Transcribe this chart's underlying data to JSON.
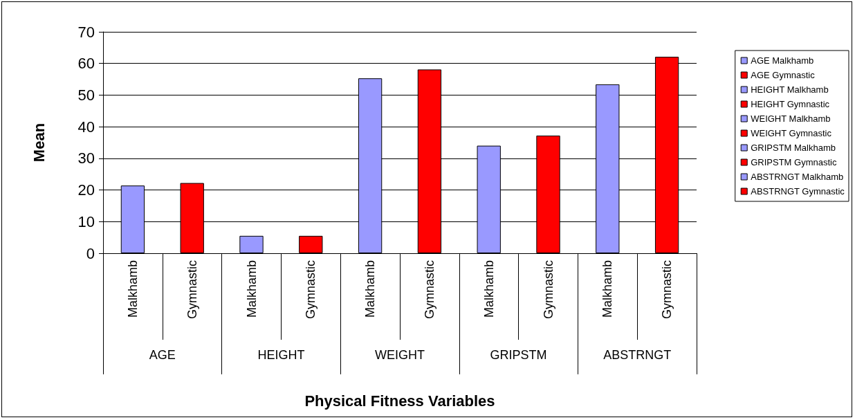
{
  "chart_data": {
    "type": "bar",
    "xlabel": "Physical Fitness Variables",
    "ylabel": "Mean",
    "categories": [
      "Malkhamb",
      "Gymnastic",
      "Malkhamb",
      "Gymnastic",
      "Malkhamb",
      "Gymnastic",
      "Malkhamb",
      "Gymnastic",
      "Malkhamb",
      "Gymnastic"
    ],
    "annotations": [
      "AGE",
      "HEIGHT",
      "WEIGHT",
      "GRIPSTM",
      "ABSTRNGT"
    ],
    "series": [
      {
        "name": "AGE Malkhamb",
        "color": "#9999ff",
        "values": [
          21.4,
          null,
          null,
          null,
          null,
          null,
          null,
          null,
          null,
          null
        ]
      },
      {
        "name": "AGE Gymnastic",
        "color": "#ff0000",
        "values": [
          null,
          22.2,
          null,
          null,
          null,
          null,
          null,
          null,
          null,
          null
        ]
      },
      {
        "name": "HEIGHT Malkhamb",
        "color": "#9999ff",
        "values": [
          null,
          null,
          5.5,
          null,
          null,
          null,
          null,
          null,
          null,
          null
        ]
      },
      {
        "name": "HEIGHT Gymnastic",
        "color": "#ff0000",
        "values": [
          null,
          null,
          null,
          5.5,
          null,
          null,
          null,
          null,
          null,
          null
        ]
      },
      {
        "name": "WEIGHT Malkhamb",
        "color": "#9999ff",
        "values": [
          null,
          null,
          null,
          null,
          55.3,
          null,
          null,
          null,
          null,
          null
        ]
      },
      {
        "name": "WEIGHT Gymnastic",
        "color": "#ff0000",
        "values": [
          null,
          null,
          null,
          null,
          null,
          58.1,
          null,
          null,
          null,
          null
        ]
      },
      {
        "name": "GRIPSTM Malkhamb",
        "color": "#9999ff",
        "values": [
          null,
          null,
          null,
          null,
          null,
          null,
          34,
          null,
          null,
          null
        ]
      },
      {
        "name": "GRIPSTM Gymnastic",
        "color": "#ff0000",
        "values": [
          null,
          null,
          null,
          null,
          null,
          null,
          null,
          37.2,
          null,
          null
        ]
      },
      {
        "name": "ABSTRNGT Malkhamb",
        "color": "#9999ff",
        "values": [
          null,
          null,
          null,
          null,
          null,
          null,
          null,
          null,
          53.4,
          null
        ]
      },
      {
        "name": "ABSTRNGT Gymnastic",
        "color": "#ff0000",
        "values": [
          null,
          null,
          null,
          null,
          null,
          null,
          null,
          null,
          null,
          62.1
        ]
      }
    ],
    "ylim": [
      0,
      70
    ],
    "yticks": [
      0,
      10,
      20,
      30,
      40,
      50,
      60,
      70
    ],
    "grid": "y",
    "legend": "right"
  }
}
